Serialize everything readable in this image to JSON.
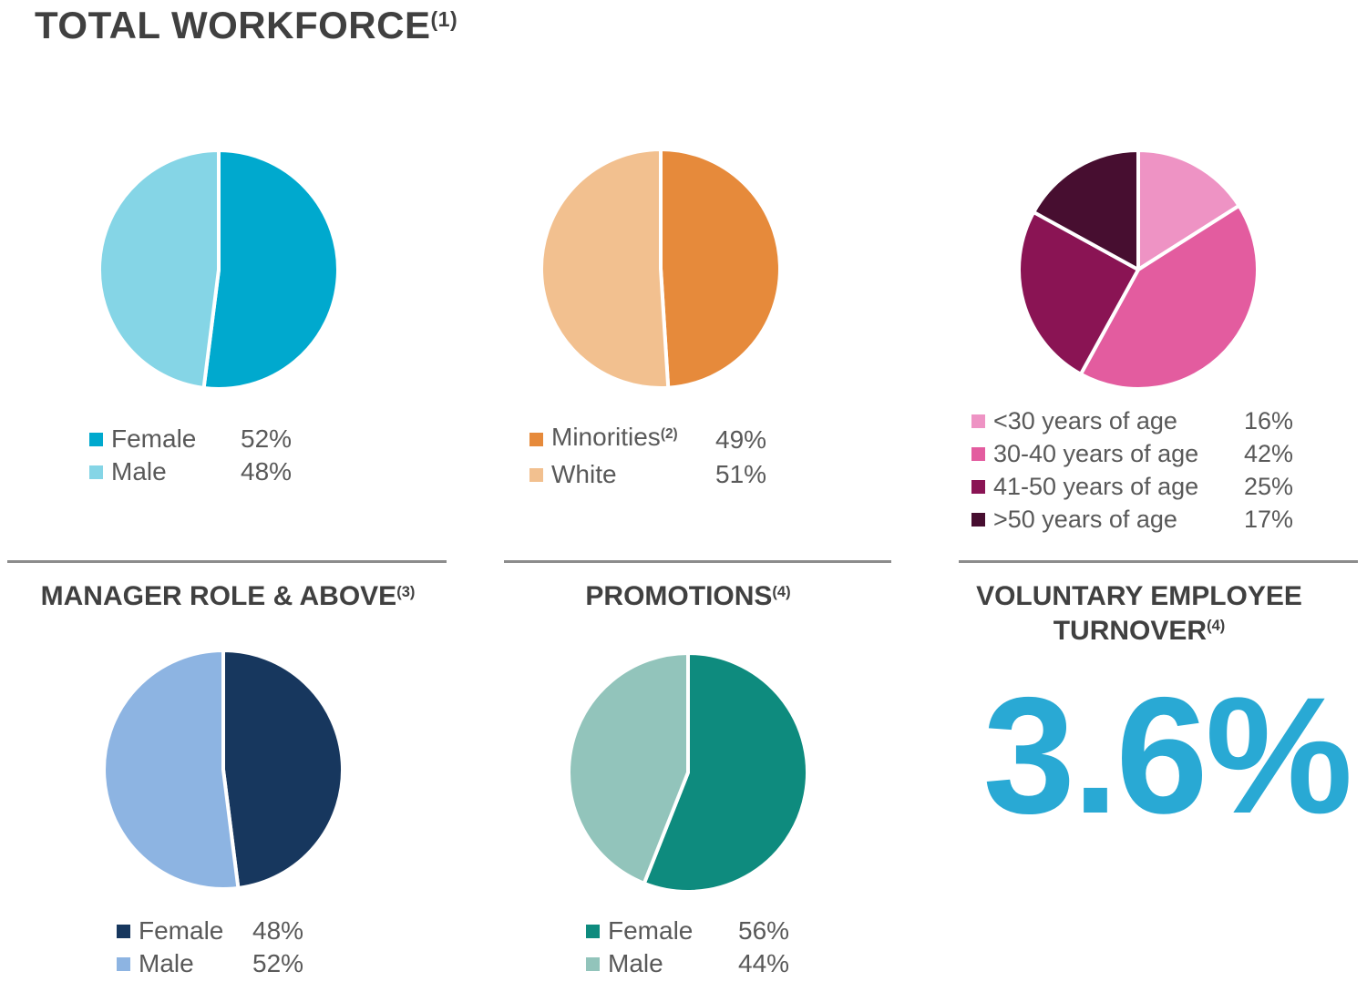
{
  "page_title": {
    "text": "TOTAL WORKFORCE",
    "sup": "(1)"
  },
  "colors": {
    "heading": "#404040",
    "legend_text": "#595959",
    "divider": "#8C8C8C",
    "accent_cyan": "#29A9D4",
    "background": "#FFFFFF"
  },
  "chart_data": [
    {
      "id": "total-workforce-gender",
      "type": "pie",
      "section": "TOTAL WORKFORCE",
      "section_sup": "(1)",
      "legend_position": "bottom",
      "slices": [
        {
          "label": "Female",
          "value": 52,
          "display": "52%",
          "color": "#00A9CE"
        },
        {
          "label": "Male",
          "value": 48,
          "display": "48%",
          "color": "#85D5E6"
        }
      ]
    },
    {
      "id": "total-workforce-ethnicity",
      "type": "pie",
      "section": "TOTAL WORKFORCE",
      "section_sup": "(1)",
      "legend_position": "bottom",
      "slices": [
        {
          "label": "Minorities",
          "sup": "(2)",
          "value": 49,
          "display": "49%",
          "color": "#E68A3B"
        },
        {
          "label": "White",
          "value": 51,
          "display": "51%",
          "color": "#F2C08F"
        }
      ]
    },
    {
      "id": "total-workforce-age",
      "type": "pie",
      "section": "TOTAL WORKFORCE",
      "section_sup": "(1)",
      "legend_position": "bottom",
      "slices": [
        {
          "label": "<30 years of age",
          "value": 16,
          "display": "16%",
          "color": "#EE93C4"
        },
        {
          "label": "30-40 years of age",
          "value": 42,
          "display": "42%",
          "color": "#E35C9F"
        },
        {
          "label": "41-50 years of age",
          "value": 25,
          "display": "25%",
          "color": "#8A1454"
        },
        {
          "label": ">50 years of age",
          "value": 17,
          "display": "17%",
          "color": "#470E30"
        }
      ]
    },
    {
      "id": "manager-role-gender",
      "type": "pie",
      "title": "MANAGER ROLE & ABOVE",
      "title_sup": "(3)",
      "legend_position": "bottom",
      "slices": [
        {
          "label": "Female",
          "value": 48,
          "display": "48%",
          "color": "#17375E"
        },
        {
          "label": "Male",
          "value": 52,
          "display": "52%",
          "color": "#8DB4E2"
        }
      ]
    },
    {
      "id": "promotions-gender",
      "type": "pie",
      "title": "PROMOTIONS",
      "title_sup": "(4)",
      "legend_position": "bottom",
      "slices": [
        {
          "label": "Female",
          "value": 56,
          "display": "56%",
          "color": "#0E8B7E"
        },
        {
          "label": "Male",
          "value": 44,
          "display": "44%",
          "color": "#92C4BB"
        }
      ]
    },
    {
      "id": "voluntary-employee-turnover",
      "type": "big-number",
      "title_line1": "VOLUNTARY EMPLOYEE",
      "title_line2": "TURNOVER",
      "title_sup": "(4)",
      "value": "3.6%",
      "color": "#29A9D4"
    }
  ]
}
